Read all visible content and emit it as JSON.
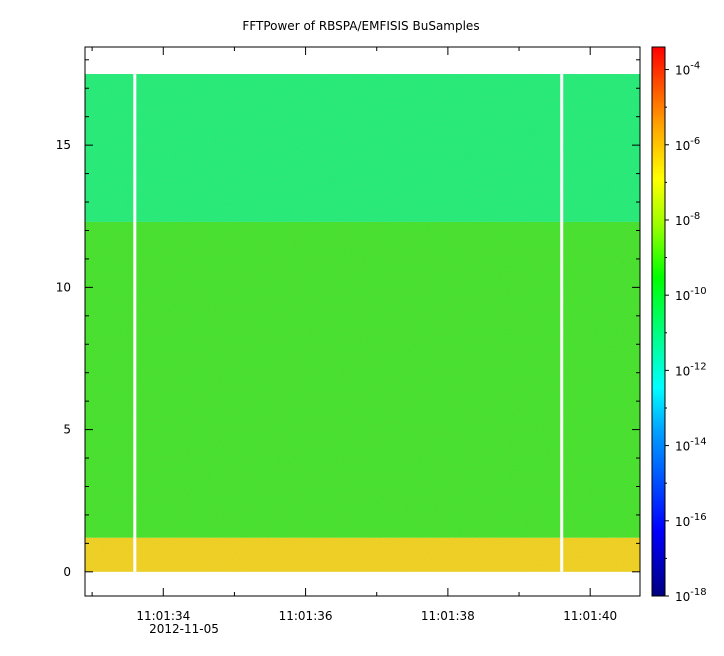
{
  "chart_data": {
    "type": "heatmap",
    "title": "FFTPower of RBSPA/EMFISIS  BuSamples",
    "xlabel": "",
    "ylabel": "",
    "x_date": "2012-11-05",
    "x_ticks": [
      "11:01:34",
      "11:01:36",
      "11:01:38",
      "11:01:40"
    ],
    "x_range_seconds_after_11_01_00": [
      32.9,
      40.7
    ],
    "y_ticks": [
      0,
      5,
      10,
      15
    ],
    "y_range": [
      -0.85,
      18.45
    ],
    "data_y_max": 17.5,
    "gaps_x_seconds_after_11_01_00": [
      33.6,
      39.6
    ],
    "bands": [
      {
        "y_from": 0,
        "y_to": 1.2,
        "log10_power": -8.5,
        "color": "#f5d21e"
      },
      {
        "y_from": 1.2,
        "y_to": 12.3,
        "log10_power": -10.5,
        "color": "#39e52a"
      },
      {
        "y_from": 12.3,
        "y_to": 17.5,
        "log10_power": -11.8,
        "color": "#13f07e"
      }
    ],
    "colorbar": {
      "scale": "log",
      "range_exponent": [
        -18,
        -3.4
      ],
      "tick_exponents": [
        -4,
        -6,
        -8,
        -10,
        -12,
        -14,
        -16,
        -18
      ],
      "tick_labels": [
        "10-4",
        "10-6",
        "10-8",
        "10-10",
        "10-12",
        "10-14",
        "10-16",
        "10-18"
      ]
    }
  }
}
